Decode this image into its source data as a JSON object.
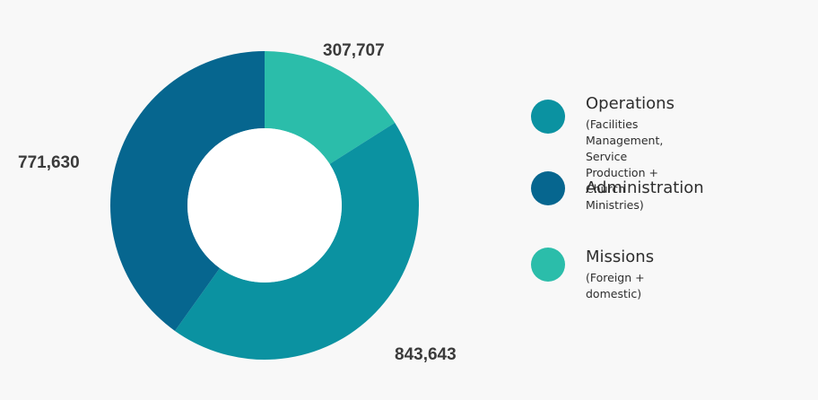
{
  "chart_data": {
    "type": "pie",
    "donut": true,
    "title": "",
    "categories": [
      "Operations",
      "Administration",
      "Missions"
    ],
    "values": [
      843643,
      771630,
      307707
    ],
    "value_labels": [
      "843,643",
      "771,630",
      "307,707"
    ],
    "colors": [
      "#0b92a1",
      "#06668f",
      "#2bbdaa"
    ],
    "start_angle_deg": 0,
    "order_clockwise": [
      "Missions",
      "Operations",
      "Administration"
    ],
    "legend_placement": "right"
  },
  "legend": [
    {
      "title": "Operations",
      "subtitle": "(Facilities Management, Service\nProduction + Church Ministries)",
      "color": "#0b92a1"
    },
    {
      "title": "Administration",
      "subtitle": "",
      "color": "#06668f"
    },
    {
      "title": "Missions",
      "subtitle": "(Foreign + domestic)",
      "color": "#2bbdaa"
    }
  ],
  "background": "#f8f8f8"
}
